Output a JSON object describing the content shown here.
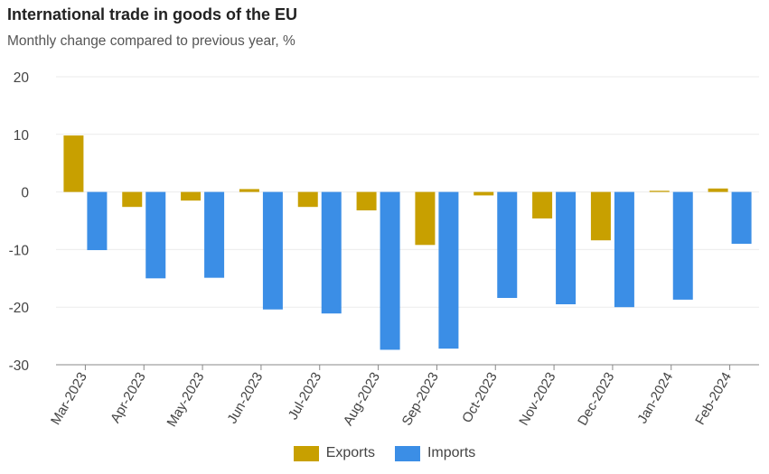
{
  "chart_data": {
    "type": "bar",
    "title": "International trade in goods of the EU",
    "subtitle": "Monthly change compared to previous year, %",
    "categories": [
      "Mar-2023",
      "Apr-2023",
      "May-2023",
      "Jun-2023",
      "Jul-2023",
      "Aug-2023",
      "Sep-2023",
      "Oct-2023",
      "Nov-2023",
      "Dec-2023",
      "Jan-2024",
      "Feb-2024"
    ],
    "series": [
      {
        "name": "Exports",
        "color": "#c8a000",
        "values": [
          9.8,
          -2.6,
          -1.5,
          0.5,
          -2.6,
          -3.2,
          -9.2,
          -0.6,
          -4.6,
          -8.4,
          0.2,
          0.6
        ]
      },
      {
        "name": "Imports",
        "color": "#3b8ee6",
        "values": [
          -10.1,
          -15.0,
          -14.9,
          -20.4,
          -21.1,
          -27.4,
          -27.2,
          -18.4,
          -19.5,
          -20.0,
          -18.7,
          -9.0
        ]
      }
    ],
    "ylim": [
      -30,
      20
    ],
    "yticks": [
      20,
      10,
      0,
      -10,
      -20,
      -30
    ],
    "grid": true,
    "legend_position": "bottom"
  }
}
